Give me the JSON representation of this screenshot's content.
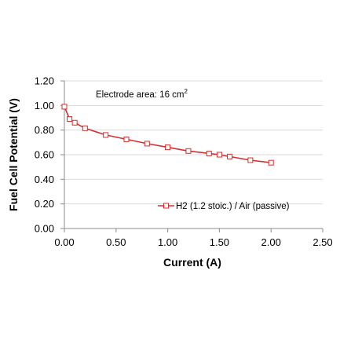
{
  "chart_data": {
    "type": "line",
    "title": "",
    "xlabel": "Current  (A)",
    "ylabel": "Fuel Cell Potential (V)",
    "xlim": [
      0,
      2.5
    ],
    "ylim": [
      0,
      1.2
    ],
    "xticks": [
      "0.00",
      "0.50",
      "1.00",
      "1.50",
      "2.00",
      "2.50"
    ],
    "yticks": [
      "0.00",
      "0.20",
      "0.40",
      "0.60",
      "0.80",
      "1.00",
      "1.20"
    ],
    "grid": "horizontal",
    "legend_position": "bottom-right",
    "annotation": {
      "text": "Electrode area: 16 cm",
      "superscript": "2"
    },
    "series": [
      {
        "name": "H2 (1.2 stoic.) / Air (passive)",
        "color": "#d32f2f",
        "marker": "open-square",
        "x": [
          0.0,
          0.05,
          0.1,
          0.2,
          0.4,
          0.6,
          0.8,
          1.0,
          1.2,
          1.4,
          1.5,
          1.6,
          1.8,
          2.0
        ],
        "y": [
          0.99,
          0.89,
          0.86,
          0.815,
          0.76,
          0.725,
          0.69,
          0.66,
          0.63,
          0.61,
          0.6,
          0.585,
          0.555,
          0.535
        ]
      }
    ]
  }
}
